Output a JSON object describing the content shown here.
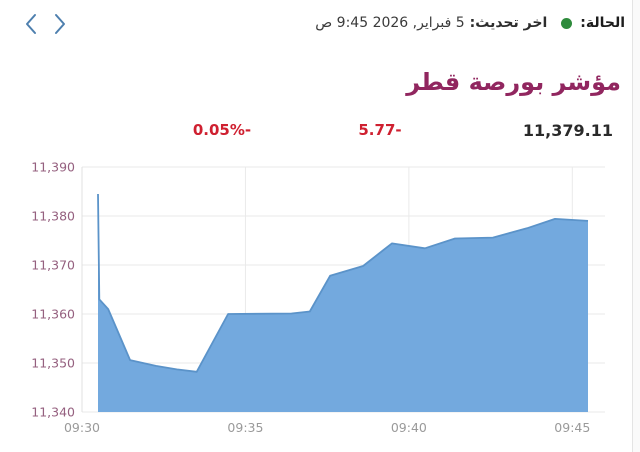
{
  "topbar": {
    "prev_label": "سابق",
    "next_label": "التالي",
    "status_label": "الحالة:",
    "status_dot_color": "#2e8b3c",
    "last_update_label": "اخر تحديث:",
    "last_update_value": "5 فبراير, 2026 9:45 ص"
  },
  "header": {
    "title": "مؤشر بورصة قطر",
    "title_color": "#91265f"
  },
  "stats": {
    "change_percent": "-0.05%",
    "change_value": "-5.77",
    "last_price": "11,379.11",
    "negative_color": "#cf2030"
  },
  "chart_data": {
    "type": "area",
    "title": "مؤشر بورصة قطر",
    "xlabel": "",
    "ylabel": "",
    "x_unit": "minutes after 09:30",
    "xlim": [
      0,
      16
    ],
    "ylim": [
      11340,
      11390
    ],
    "x_ticks": [
      0,
      5,
      10,
      15
    ],
    "x_tick_labels": [
      "09:30",
      "09:35",
      "09:40",
      "09:45"
    ],
    "y_ticks": [
      11390,
      11380,
      11370,
      11360,
      11350,
      11340
    ],
    "y_tick_labels": [
      "11,390",
      "11,380",
      "11,370",
      "11,360",
      "11,350",
      "11,340"
    ],
    "grid": true,
    "legend": false,
    "series": [
      {
        "name": "مؤشر بورصة قطر",
        "t": [
          0.49,
          0.53,
          0.8,
          1.47,
          2.26,
          2.9,
          3.51,
          4.47,
          6.41,
          6.97,
          7.59,
          8.6,
          9.48,
          10.49,
          11.41,
          12.57,
          13.61,
          14.47,
          15.48
        ],
        "v": [
          11384.5,
          11363,
          11361,
          11350.6,
          11349.4,
          11348.7,
          11348.2,
          11360,
          11360.1,
          11360.5,
          11367.8,
          11369.8,
          11374.4,
          11373.4,
          11375.4,
          11375.6,
          11377.5,
          11379.4,
          11379.0
        ]
      }
    ],
    "line_color": "#5b93c9",
    "fill_color": "#73a9de",
    "grid_color": "#eaeaea",
    "axis_line_color": "#e0e0e0",
    "x_label_color": "#9a9a9a",
    "y_label_color": "#95607f"
  }
}
